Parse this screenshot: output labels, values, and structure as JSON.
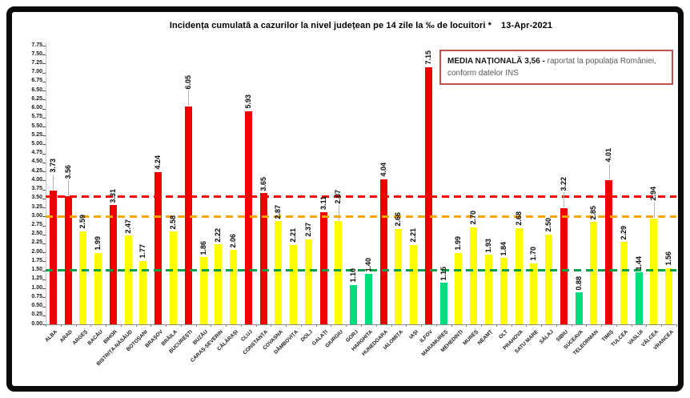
{
  "title": "Incidența cumulată a cazurilor la nivel județean pe 14 zile la ‰ de locuitori *",
  "date": "13-Apr-2021",
  "legend": {
    "bold": "MEDIA NAȚIONALĂ  3,56 -",
    "text": " raportat la populația României, conform datelor INS"
  },
  "chart_data": {
    "type": "bar",
    "title": "Incidența cumulată a cazurilor la nivel județean pe 14 zile la ‰ de locuitori * 13-Apr-2021",
    "xlabel": "",
    "ylabel": "",
    "ylim": [
      0,
      7.75
    ],
    "ytick_step": 0.25,
    "grid": false,
    "legend_position": "top-right",
    "national_average": 3.56,
    "categories": [
      "ALBA",
      "ARAD",
      "ARGEȘ",
      "BACĂU",
      "BIHOR",
      "BISTRIȚA-NĂSĂUD",
      "BOTOȘANI",
      "BRAȘOV",
      "BRĂILA",
      "BUCUREȘTI",
      "BUZĂU",
      "CARAȘ-SEVERIN",
      "CĂLĂRAȘI",
      "CLUJ",
      "CONSTANȚA",
      "COVASNA",
      "DÂMBOVIȚA",
      "DOLJ",
      "GALAȚI",
      "GIURGIU",
      "GORJ",
      "HARGHITA",
      "HUNEDOARA",
      "IALOMIȚA",
      "IAȘI",
      "ILFOV",
      "MARAMUREȘ",
      "MEHEDINȚI",
      "MUREȘ",
      "NEAMȚ",
      "OLT",
      "PRAHOVA",
      "SATU MARE",
      "SĂLAJ",
      "SIBIU",
      "SUCEAVA",
      "TELEORMAN",
      "TIMIȘ",
      "TULCEA",
      "VASLUI",
      "VÂLCEA",
      "VRANCEA"
    ],
    "values": [
      3.73,
      3.56,
      2.59,
      1.99,
      3.31,
      2.47,
      1.77,
      4.24,
      2.58,
      6.05,
      1.86,
      2.22,
      2.06,
      5.93,
      3.65,
      2.87,
      2.21,
      2.37,
      3.11,
      2.87,
      1.1,
      1.4,
      4.04,
      2.66,
      2.21,
      7.15,
      1.15,
      1.99,
      2.7,
      1.93,
      1.84,
      2.68,
      1.7,
      2.5,
      3.22,
      0.88,
      2.85,
      4.01,
      2.29,
      1.44,
      2.94,
      1.56
    ],
    "zone_thresholds": {
      "red": 3.0,
      "yellow": 1.5
    },
    "bar_colors": {
      "red": "#ee0000",
      "yellow": "#ffff00",
      "green": "#00dd7f"
    },
    "reference_lines": [
      {
        "name": "national-average-line",
        "value": 3.56,
        "color": "#ff0000"
      },
      {
        "name": "red-zone-threshold-line",
        "value": 3.0,
        "color": "#ffa500"
      },
      {
        "name": "yellow-zone-threshold-line",
        "value": 1.5,
        "color": "#00a14b"
      }
    ]
  }
}
